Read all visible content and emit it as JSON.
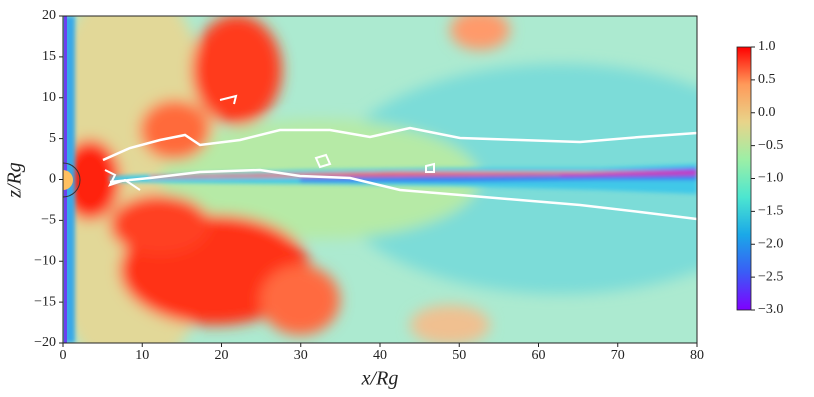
{
  "chart_data": {
    "type": "image",
    "xlabel": "x/Rg",
    "ylabel": "z/Rg",
    "xlim": [
      0,
      80
    ],
    "xticks": [
      0,
      10,
      20,
      30,
      40,
      50,
      60,
      70,
      80
    ],
    "ylim": [
      -20,
      20
    ],
    "yticks": [
      {
        "value": -20,
        "label": "−20"
      },
      {
        "value": -15,
        "label": "−15"
      },
      {
        "value": -10,
        "label": "−10"
      },
      {
        "value": -5,
        "label": "−5"
      },
      0,
      5,
      10,
      15,
      20
    ],
    "colorbar": {
      "lim": [
        -3,
        1
      ],
      "ticks": [
        {
          "value": -3,
          "label": "−3.0"
        },
        {
          "value": -2.5,
          "label": "−2.5"
        },
        {
          "value": -2,
          "label": "−2.0"
        },
        {
          "value": -1.5,
          "label": "−1.5"
        },
        {
          "value": -1,
          "label": "−1.0"
        },
        {
          "value": -0.5,
          "label": "−0.5"
        },
        {
          "value": 0,
          "label": "0.0"
        },
        0.5,
        {
          "value": 1,
          "label": "1.0"
        }
      ],
      "colors": [
        "#7f00ff",
        "#3a5cf6",
        "#1aa8e8",
        "#4ce6d0",
        "#9cefa6",
        "#e8d48a",
        "#ff9a5a",
        "#ff0000"
      ]
    }
  }
}
